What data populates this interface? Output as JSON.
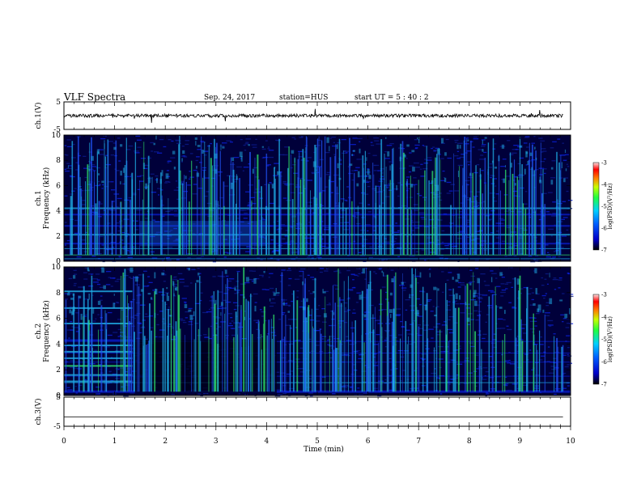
{
  "header": {
    "title": "VLF Spectra",
    "date": "Sep. 24, 2017",
    "station": "station=HUS",
    "start": "start  UT =   5 : 40 : 2"
  },
  "chart_data": [
    {
      "type": "line",
      "panel": "ch1-waveform",
      "ylabel": "ch.1(V)",
      "ylim": [
        -5,
        5
      ],
      "yticks": [
        "5",
        "-5"
      ],
      "xlim": [
        0,
        10
      ],
      "baseline": 0
    },
    {
      "type": "heatmap",
      "panel": "ch1-spectrogram",
      "ylabel": "ch.1\nFrequency (kHz)",
      "ylim": [
        0,
        10
      ],
      "yticks": [
        "0",
        "2",
        "4",
        "6",
        "8",
        "10"
      ],
      "xlim": [
        0,
        10
      ],
      "colorbar": {
        "label": "log(PSD)(V²/Hz)",
        "range": [
          -7,
          -3
        ],
        "ticks": [
          "-3",
          "-4",
          "-5",
          "-6",
          "-7"
        ]
      }
    },
    {
      "type": "heatmap",
      "panel": "ch2-spectrogram",
      "ylabel": "ch.2\nFrequency (kHz)",
      "ylim": [
        0,
        10
      ],
      "yticks": [
        "0",
        "2",
        "4",
        "6",
        "8",
        "10"
      ],
      "xlim": [
        0,
        10
      ],
      "colorbar": {
        "label": "log(PSD)(V²/Hz)",
        "range": [
          -7,
          -3
        ],
        "ticks": [
          "-3",
          "-4",
          "-5",
          "-6",
          "-7"
        ]
      }
    },
    {
      "type": "line",
      "panel": "ch3-waveform",
      "ylabel": "ch.3(V)",
      "ylim": [
        -5,
        5
      ],
      "yticks": [
        "5",
        "-5"
      ],
      "xlim": [
        0,
        10
      ],
      "baseline": -1.8
    }
  ],
  "xaxis": {
    "label": "Time  (min)",
    "ticks": [
      "0",
      "1",
      "2",
      "3",
      "4",
      "5",
      "6",
      "7",
      "8",
      "9",
      "10"
    ]
  },
  "colors": {
    "background": "#00003a",
    "low": "#0a1fd8",
    "mid": "#1fb0e8",
    "high": "#30e86a"
  }
}
